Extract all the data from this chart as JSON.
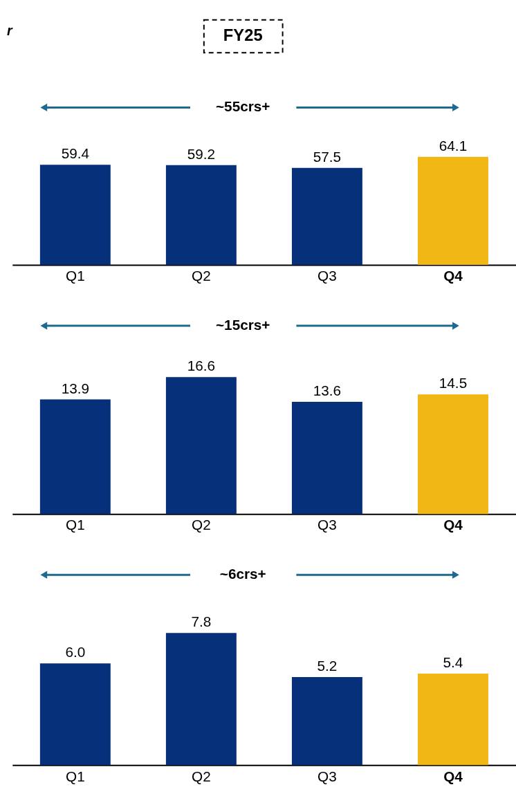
{
  "chart_data": [
    {
      "type": "bar",
      "title": "FY25",
      "annotations": [
        "r",
        "~55crs+"
      ],
      "categories": [
        "Q1",
        "Q2",
        "Q3",
        "Q4"
      ],
      "values": [
        59.4,
        59.2,
        57.5,
        64.1
      ],
      "colors": [
        "#06307a",
        "#06307a",
        "#06307a",
        "#f1b815"
      ],
      "data_labels": true,
      "tick_labels": "x"
    },
    {
      "type": "bar",
      "annotations": [
        "~15crs+"
      ],
      "categories": [
        "Q1",
        "Q2",
        "Q3",
        "Q4"
      ],
      "values": [
        13.9,
        16.6,
        13.6,
        14.5
      ],
      "colors": [
        "#06307a",
        "#06307a",
        "#06307a",
        "#f1b815"
      ],
      "data_labels": true,
      "tick_labels": "x"
    },
    {
      "type": "bar",
      "annotations": [
        "~6crs+"
      ],
      "categories": [
        "Q1",
        "Q2",
        "Q3",
        "Q4"
      ],
      "values": [
        6.0,
        7.8,
        5.2,
        5.4
      ],
      "value_labels": [
        "6.0",
        "7.8",
        "5.2",
        "5.4"
      ],
      "colors": [
        "#06307a",
        "#06307a",
        "#06307a",
        "#f1b815"
      ],
      "tick_labels": "x"
    }
  ]
}
